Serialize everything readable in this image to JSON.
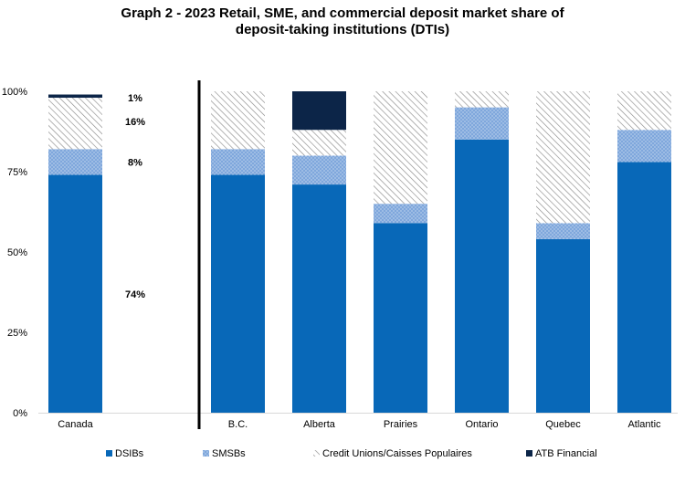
{
  "chart_data": {
    "type": "bar",
    "stacked": true,
    "title_lines": [
      "Graph 2 - 2023 Retail, SME, and commercial deposit market share of",
      "deposit-taking institutions (DTIs)"
    ],
    "categories": [
      "Canada",
      "B.C.",
      "Alberta",
      "Prairies",
      "Ontario",
      "Quebec",
      "Atlantic"
    ],
    "y_tick_labels": [
      "0%",
      "25%",
      "50%",
      "75%",
      "100%"
    ],
    "ylim": [
      0,
      100
    ],
    "grid": false,
    "legend_position": "bottom",
    "series": [
      {
        "name": "DSIBs",
        "color": "#0868b8",
        "pattern": "solid",
        "values": [
          74,
          74,
          71,
          59,
          85,
          54,
          78
        ]
      },
      {
        "name": "SMSBs",
        "color": "#7fa7dc",
        "pattern": "dots",
        "values": [
          8,
          8,
          9,
          6,
          10,
          5,
          10
        ]
      },
      {
        "name": "Credit Unions/Caisses Populaires",
        "color": "#8c8c8c",
        "pattern": "hatch",
        "values": [
          16,
          18,
          8,
          35,
          5,
          41,
          12
        ]
      },
      {
        "name": "ATB Financial",
        "color": "#0c2548",
        "pattern": "solid",
        "values": [
          1,
          0,
          12,
          0,
          0,
          0,
          0
        ]
      }
    ],
    "data_labels": [
      "74%",
      "8%",
      "16%",
      "1%"
    ],
    "separator_after_category": "Canada"
  }
}
